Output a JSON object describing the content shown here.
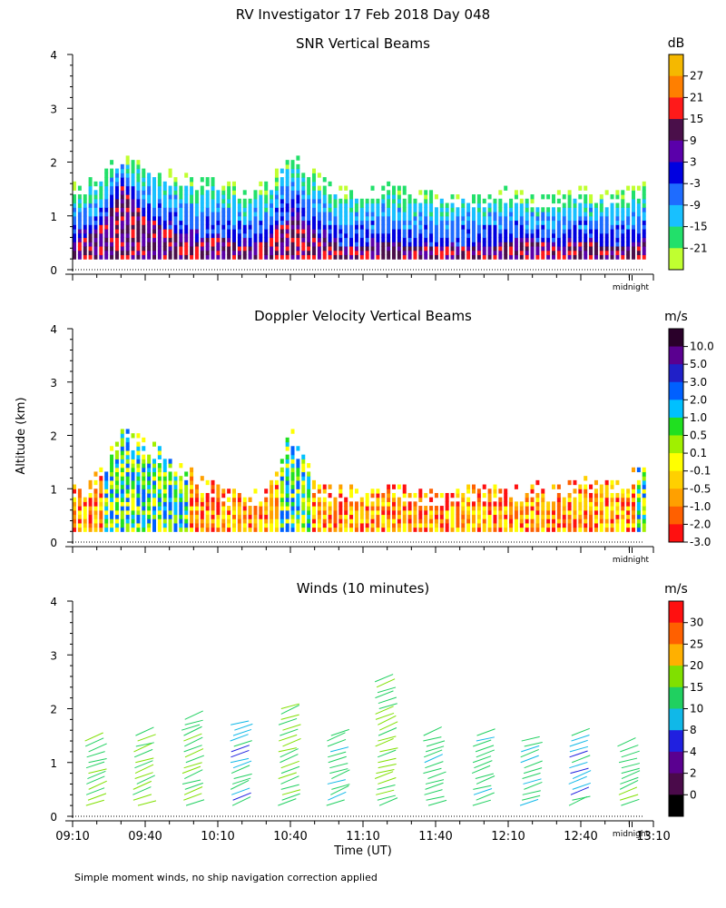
{
  "figure": {
    "title": "RV Investigator  17 Feb 2018 Day 048",
    "ylabel": "Altitude (km)",
    "xlabel": "Time (UT)",
    "footnote": "Simple moment winds, no ship navigation correction applied",
    "midnight_label": "midnight",
    "midnight_marker": "II"
  },
  "chart_data": [
    {
      "type": "heatmap",
      "title": "SNR Vertical Beams",
      "unit": "dB",
      "ylabel": "Altitude (km)",
      "ylim": [
        0,
        4
      ],
      "yticks": [
        "0",
        "1",
        "2",
        "3",
        "4"
      ],
      "xlim": [
        "09:10",
        "13:10"
      ],
      "colorbar_labels": [
        "27",
        "21",
        "15",
        "9",
        "3",
        "-3",
        "-9",
        "-15",
        "-21"
      ],
      "colorbar_colors": [
        "#f5b800",
        "#ff7f00",
        "#ff1a1a",
        "#4a0f4a",
        "#5a00aa",
        "#0000e0",
        "#1e6cff",
        "#18c0ff",
        "#22e06a",
        "#c0ff30"
      ],
      "x": [
        0,
        10,
        20,
        30,
        40,
        50,
        60,
        70,
        80,
        90,
        100,
        110,
        120,
        130,
        140,
        150,
        160,
        170,
        180,
        190,
        200,
        210,
        220,
        230,
        236
      ],
      "echo_top_km": [
        1.6,
        1.7,
        2.2,
        1.9,
        1.8,
        1.7,
        1.7,
        1.5,
        1.6,
        2.2,
        1.8,
        1.5,
        1.5,
        1.6,
        1.5,
        1.4,
        1.4,
        1.4,
        1.5,
        1.4,
        1.4,
        1.5,
        1.4,
        1.5,
        1.6
      ],
      "strong_core_km": [
        0.5,
        0.7,
        1.5,
        0.9,
        0.7,
        0.5,
        0.6,
        0.4,
        0.5,
        1.0,
        0.6,
        0.4,
        0.4,
        0.5,
        0.4,
        0.4,
        0.4,
        0.4,
        0.5,
        0.5,
        0.4,
        0.5,
        0.4,
        0.4,
        0.5
      ]
    },
    {
      "type": "heatmap",
      "title": "Doppler Velocity Vertical Beams",
      "unit": "m/s",
      "ylabel": "Altitude (km)",
      "ylim": [
        0,
        4
      ],
      "yticks": [
        "0",
        "1",
        "2",
        "3",
        "4"
      ],
      "xlim": [
        "09:10",
        "13:10"
      ],
      "colorbar_labels": [
        "10.0",
        "5.0",
        "3.0",
        "2.0",
        "1.0",
        "0.5",
        "0.1",
        "-0.1",
        "-0.5",
        "-1.0",
        "-2.0",
        "-3.0"
      ],
      "colorbar_colors": [
        "#2a002a",
        "#5a0090",
        "#2020c8",
        "#0060ff",
        "#00c0ff",
        "#20e020",
        "#a0f000",
        "#ffff00",
        "#ffd000",
        "#ffa000",
        "#ff6000",
        "#ff1010"
      ],
      "x": [
        0,
        10,
        20,
        30,
        40,
        50,
        60,
        70,
        80,
        90,
        100,
        110,
        120,
        130,
        140,
        150,
        160,
        170,
        180,
        190,
        200,
        210,
        220,
        230,
        236
      ],
      "echo_top_km": [
        1.0,
        1.3,
        2.1,
        1.9,
        1.6,
        1.3,
        1.0,
        0.9,
        1.0,
        2.1,
        1.1,
        1.0,
        1.0,
        1.1,
        1.0,
        0.9,
        1.0,
        1.0,
        1.0,
        1.1,
        1.0,
        1.2,
        1.1,
        1.3,
        1.5
      ]
    },
    {
      "type": "wind_barbs",
      "title": "Winds (10 minutes)",
      "unit": "m/s",
      "ylabel": "Altitude (km)",
      "xlabel": "Time (UT)",
      "ylim": [
        0,
        4
      ],
      "yticks": [
        "0",
        "1",
        "2",
        "3",
        "4"
      ],
      "xticks": [
        "09:10",
        "09:40",
        "10:10",
        "10:40",
        "11:10",
        "11:40",
        "12:10",
        "12:40",
        "13:10"
      ],
      "colorbar_labels": [
        "30",
        "25",
        "20",
        "15",
        "10",
        "8",
        "4",
        "2",
        "0"
      ],
      "colorbar_colors": [
        "#ff1010",
        "#ff6000",
        "#ffb000",
        "#80e000",
        "#20d060",
        "#10b8e8",
        "#2020e0",
        "#5a0090",
        "#4a0a4a",
        "#000000"
      ],
      "profile_times_min": [
        10,
        30,
        50,
        70,
        90,
        110,
        130,
        150,
        170,
        190,
        210,
        230
      ],
      "profile_top_km": [
        1.5,
        1.6,
        1.9,
        1.8,
        2.1,
        1.6,
        2.6,
        1.6,
        1.6,
        1.5,
        1.6,
        1.4
      ],
      "profile_speed_ms": [
        14,
        15,
        15,
        10,
        14,
        12,
        15,
        12,
        12,
        11,
        10,
        13
      ]
    }
  ],
  "colors": {
    "axis": "#000000",
    "background": "#ffffff"
  }
}
